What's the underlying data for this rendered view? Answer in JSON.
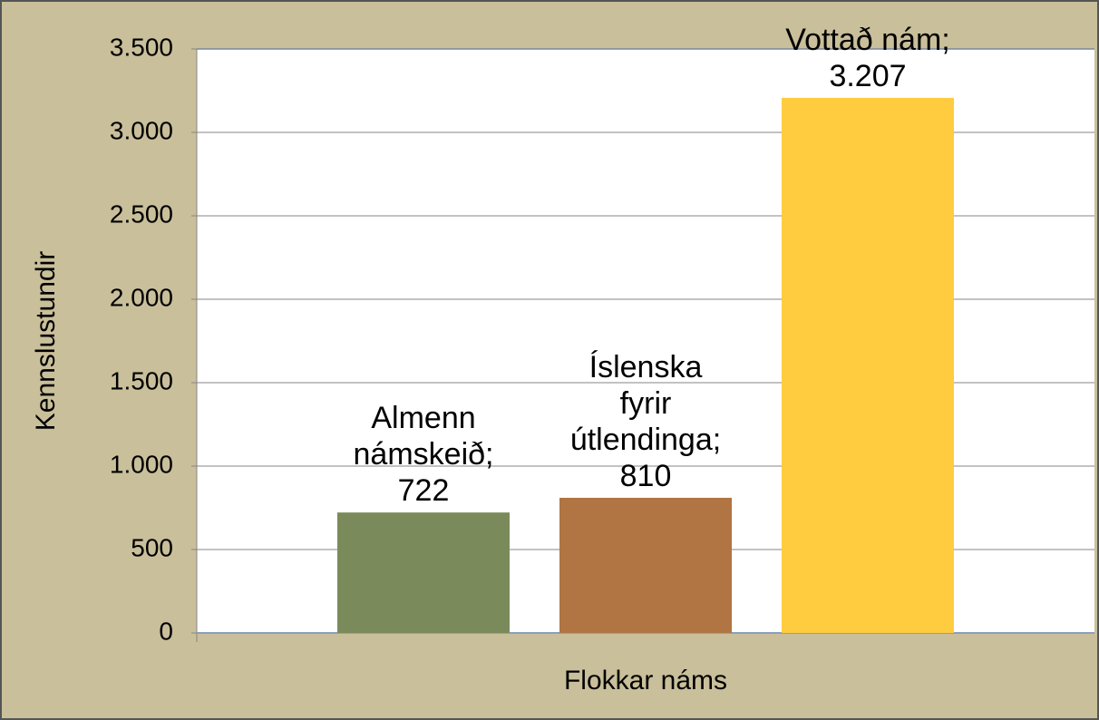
{
  "chart_data": {
    "type": "bar",
    "xlabel": "Flokkar náms",
    "ylabel": "Kennslustundir",
    "categories": [
      null
    ],
    "series": [
      {
        "name": "Almenn námskeið",
        "color": "#7b8a5a",
        "values": [
          722
        ],
        "value_labels": [
          "Almenn námskeið; 722"
        ]
      },
      {
        "name": "Íslenska fyrir útlendinga",
        "color": "#b07542",
        "values": [
          810
        ],
        "value_labels": [
          "Íslenska fyrir útlendinga; 810"
        ]
      },
      {
        "name": "Vottað nám",
        "color": "#ffcc40",
        "values": [
          3207
        ],
        "value_labels": [
          "Vottað nám; 3.207"
        ]
      }
    ],
    "ylim": [
      0,
      3500
    ],
    "yticks": [
      0,
      500,
      {
        "value": 1000,
        "label": "1.000"
      },
      {
        "value": 1500,
        "label": "1.500"
      },
      {
        "value": 2000,
        "label": "2.000"
      },
      {
        "value": 2500,
        "label": "2.500"
      },
      {
        "value": 3000,
        "label": "3.000"
      },
      {
        "value": 3500,
        "label": "3.500"
      }
    ],
    "grid": true
  }
}
